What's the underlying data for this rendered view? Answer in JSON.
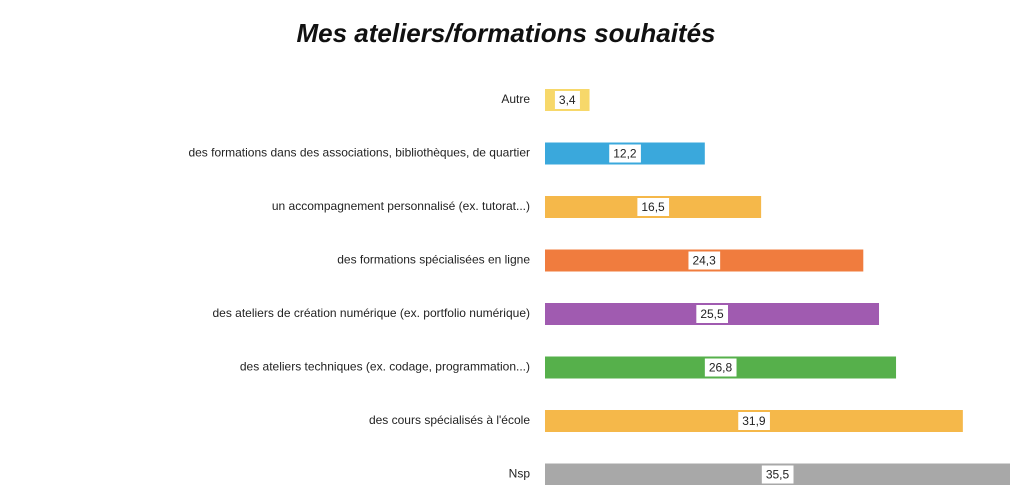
{
  "chart_data": {
    "type": "hbar",
    "title": "Mes ateliers/formations souhaités",
    "categories": [
      "Autre",
      "des formations dans des associations, bibliothèques, de quartier",
      "un accompagnement personnalisé (ex. tutorat...)",
      "des formations spécialisées en ligne",
      "des ateliers de création numérique (ex. portfolio numérique)",
      "des ateliers techniques (ex. codage, programmation...)",
      "des cours spécialisés à l'école",
      "Nsp"
    ],
    "values": [
      3.4,
      12.2,
      16.5,
      24.3,
      25.5,
      26.8,
      31.9,
      35.5
    ],
    "value_labels": [
      "3,4",
      "12,2",
      "16,5",
      "24,3",
      "25,5",
      "26,8",
      "31,9",
      "35,5"
    ],
    "colors": [
      "#f7d86a",
      "#3aa8dc",
      "#f5b84a",
      "#f07c3e",
      "#a05bb0",
      "#56b04b",
      "#f5b84a",
      "#a8a8a8"
    ]
  }
}
